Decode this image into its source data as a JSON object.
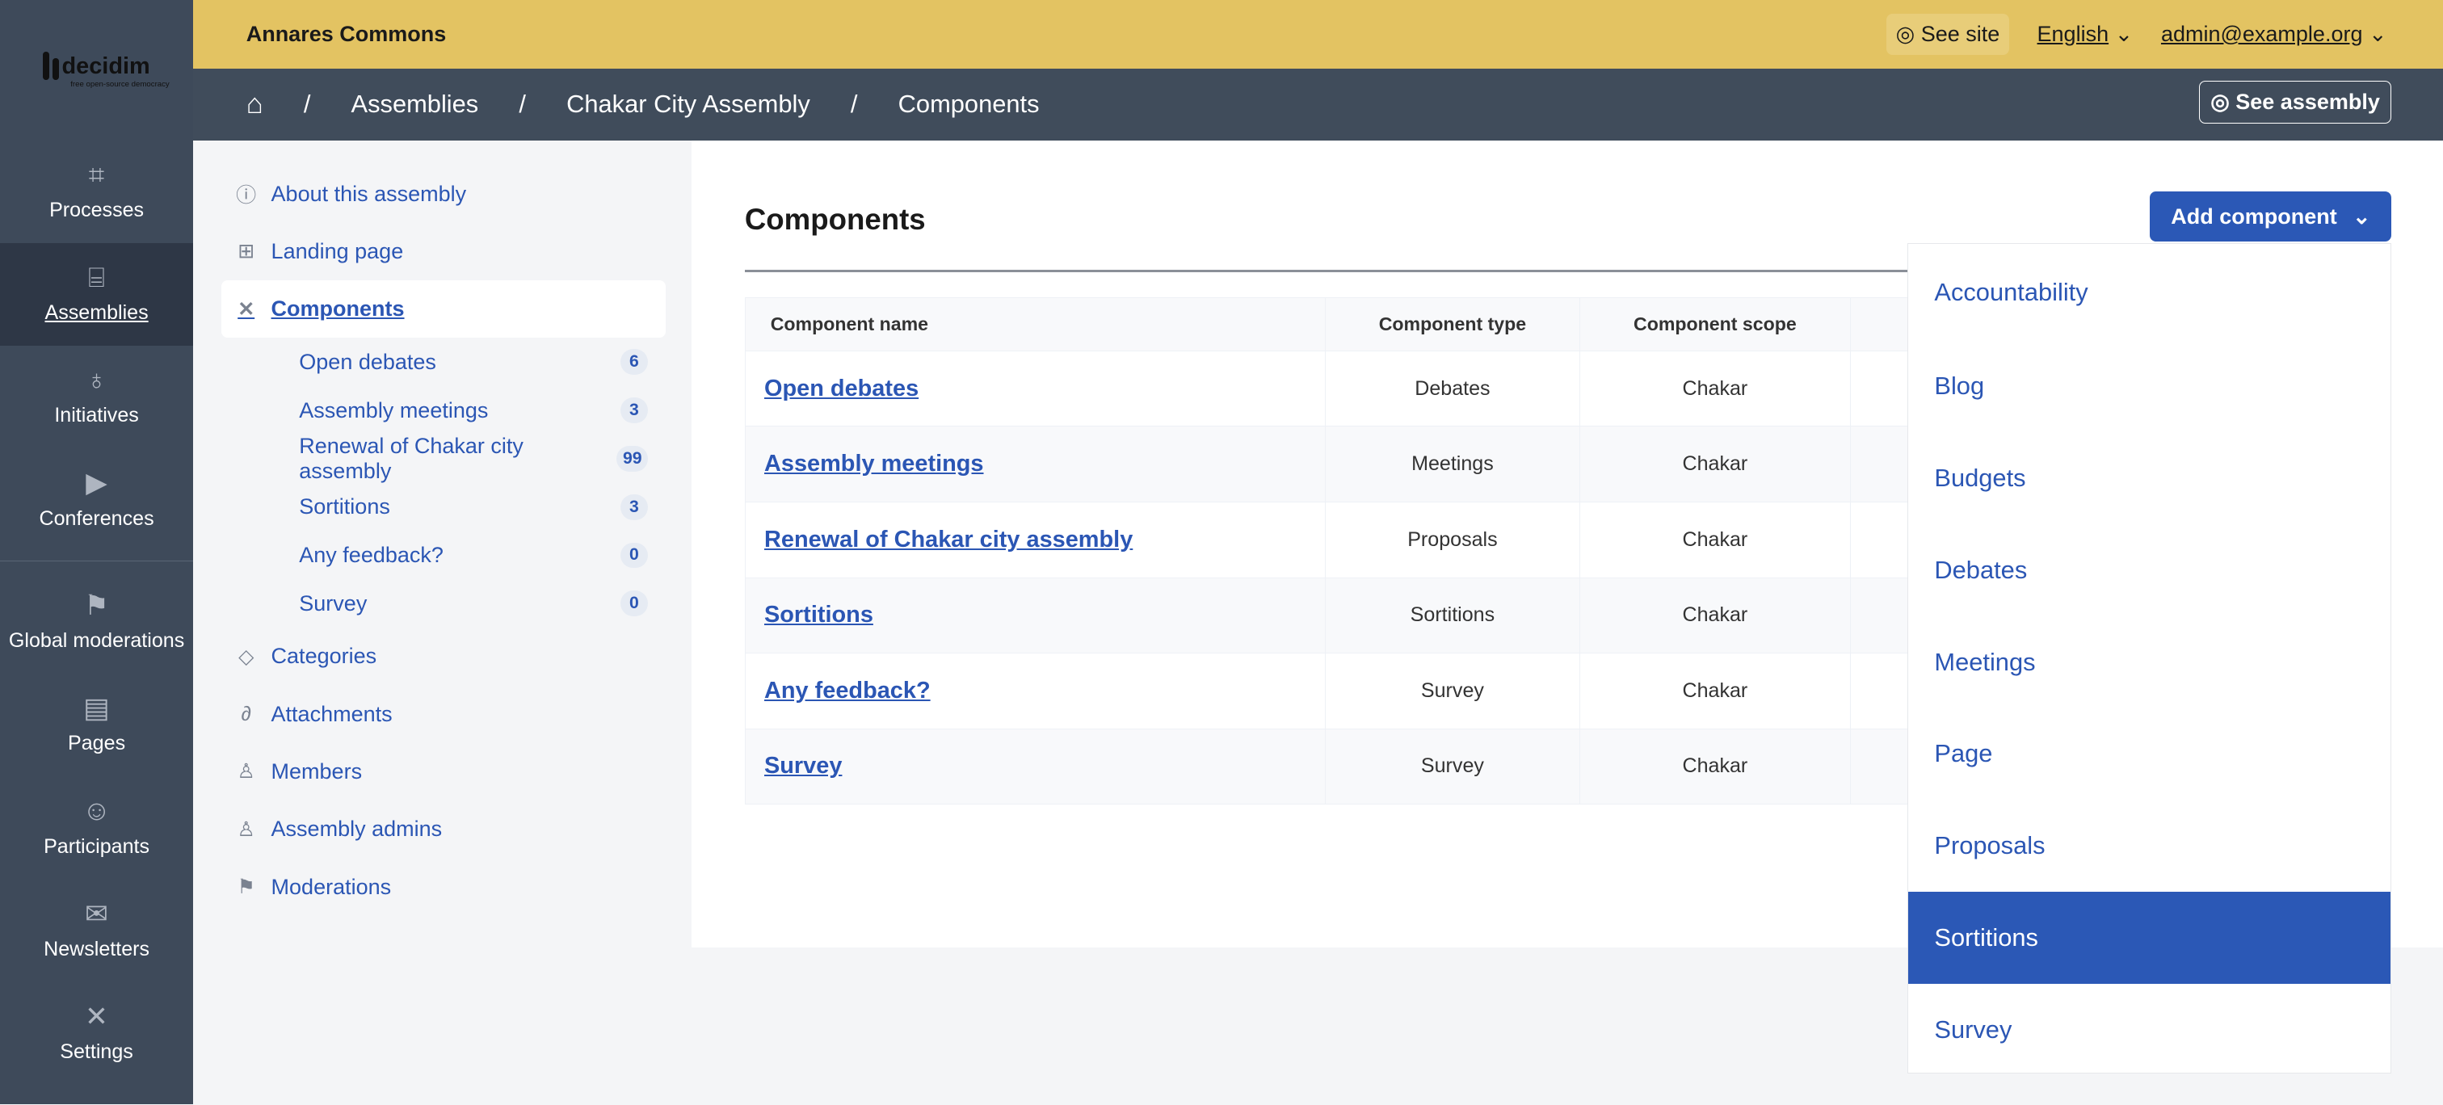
{
  "logo": {
    "text": "decidim",
    "tagline": "free open-source democracy"
  },
  "sidebar": {
    "items": [
      {
        "label": "Processes",
        "icon": "map-icon"
      },
      {
        "label": "Assemblies",
        "icon": "building-icon",
        "active": true
      },
      {
        "label": "Initiatives",
        "icon": "lightbulb-icon"
      },
      {
        "label": "Conferences",
        "icon": "video-icon"
      },
      {
        "label": "Global moderations",
        "icon": "flag-icon"
      },
      {
        "label": "Pages",
        "icon": "page-icon"
      },
      {
        "label": "Participants",
        "icon": "people-icon"
      },
      {
        "label": "Newsletters",
        "icon": "mail-icon"
      },
      {
        "label": "Settings",
        "icon": "tools-icon"
      }
    ]
  },
  "topbar": {
    "org": "Annares Commons",
    "see_site": "See site",
    "language": "English",
    "user": "admin@example.org"
  },
  "breadcrumb": {
    "items": [
      "Assemblies",
      "Chakar City Assembly",
      "Components"
    ],
    "see_assembly": "See assembly"
  },
  "subnav": {
    "items": [
      {
        "label": "About this assembly",
        "icon": "info-icon"
      },
      {
        "label": "Landing page",
        "icon": "layout-icon"
      },
      {
        "label": "Components",
        "icon": "tools-icon",
        "active": true
      }
    ],
    "components": [
      {
        "label": "Open debates",
        "count": "6"
      },
      {
        "label": "Assembly meetings",
        "count": "3"
      },
      {
        "label": "Renewal of Chakar city assembly",
        "count": "99"
      },
      {
        "label": "Sortitions",
        "count": "3"
      },
      {
        "label": "Any feedback?",
        "count": "0"
      },
      {
        "label": "Survey",
        "count": "0"
      }
    ],
    "rest": [
      {
        "label": "Categories",
        "icon": "tag-icon"
      },
      {
        "label": "Attachments",
        "icon": "paperclip-icon"
      },
      {
        "label": "Members",
        "icon": "user-gear-icon"
      },
      {
        "label": "Assembly admins",
        "icon": "user-gear-icon"
      },
      {
        "label": "Moderations",
        "icon": "flag-icon"
      }
    ]
  },
  "main": {
    "title": "Components",
    "add_button": "Add component",
    "columns": [
      "Component name",
      "Component type",
      "Component scope"
    ],
    "rows": [
      [
        "Open debates",
        "Debates",
        "Chakar"
      ],
      [
        "Assembly meetings",
        "Meetings",
        "Chakar"
      ],
      [
        "Renewal of Chakar city assembly",
        "Proposals",
        "Chakar"
      ],
      [
        "Sortitions",
        "Sortitions",
        "Chakar"
      ],
      [
        "Any feedback?",
        "Survey",
        "Chakar"
      ],
      [
        "Survey",
        "Survey",
        "Chakar"
      ]
    ]
  },
  "dropdown": {
    "items": [
      "Accountability",
      "Blog",
      "Budgets",
      "Debates",
      "Meetings",
      "Page",
      "Proposals",
      "Sortitions",
      "Survey"
    ],
    "selected": "Sortitions"
  },
  "colors": {
    "topbar": "#e3c362",
    "sidebar": "#3e4a5a",
    "accent": "#2b58b6"
  }
}
